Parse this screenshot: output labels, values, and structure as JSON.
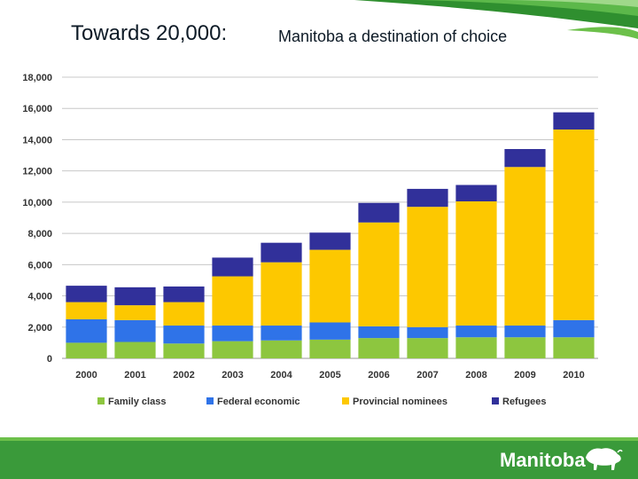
{
  "header": {
    "title": "Towards 20,000:",
    "subtitle": "Manitoba a destination of choice"
  },
  "footer": {
    "logo_text": "Manitoba"
  },
  "colors": {
    "family": "#8dc63f",
    "federal": "#2f73e8",
    "provincial": "#fdc800",
    "refugees": "#31309a",
    "green": "#3a9a3a"
  },
  "chart_data": {
    "type": "bar",
    "stacked": true,
    "title": "",
    "xlabel": "",
    "ylabel": "",
    "ylim": [
      0,
      18000
    ],
    "yticks": [
      0,
      2000,
      4000,
      6000,
      8000,
      10000,
      12000,
      14000,
      16000,
      18000
    ],
    "ytick_labels": [
      "0",
      "2,000",
      "4,000",
      "6,000",
      "8,000",
      "10,000",
      "12,000",
      "14,000",
      "16,000",
      "18,000"
    ],
    "grid": true,
    "legend_position": "bottom",
    "categories": [
      "2000",
      "2001",
      "2002",
      "2003",
      "2004",
      "2005",
      "2006",
      "2007",
      "2008",
      "2009",
      "2010"
    ],
    "series": [
      {
        "name": "Family class",
        "color": "#8dc63f",
        "values": [
          1000,
          1050,
          950,
          1100,
          1150,
          1200,
          1300,
          1300,
          1350,
          1350,
          1350
        ]
      },
      {
        "name": "Federal economic",
        "color": "#2f73e8",
        "values": [
          1500,
          1400,
          1150,
          1000,
          950,
          1100,
          750,
          700,
          750,
          750,
          1100
        ]
      },
      {
        "name": "Provincial nominees",
        "color": "#fdc800",
        "values": [
          1100,
          950,
          1500,
          3150,
          4050,
          4650,
          6650,
          7700,
          7950,
          10150,
          12200
        ]
      },
      {
        "name": "Refugees",
        "color": "#31309a",
        "values": [
          1050,
          1150,
          1000,
          1200,
          1250,
          1100,
          1250,
          1150,
          1050,
          1150,
          1100
        ]
      }
    ]
  }
}
